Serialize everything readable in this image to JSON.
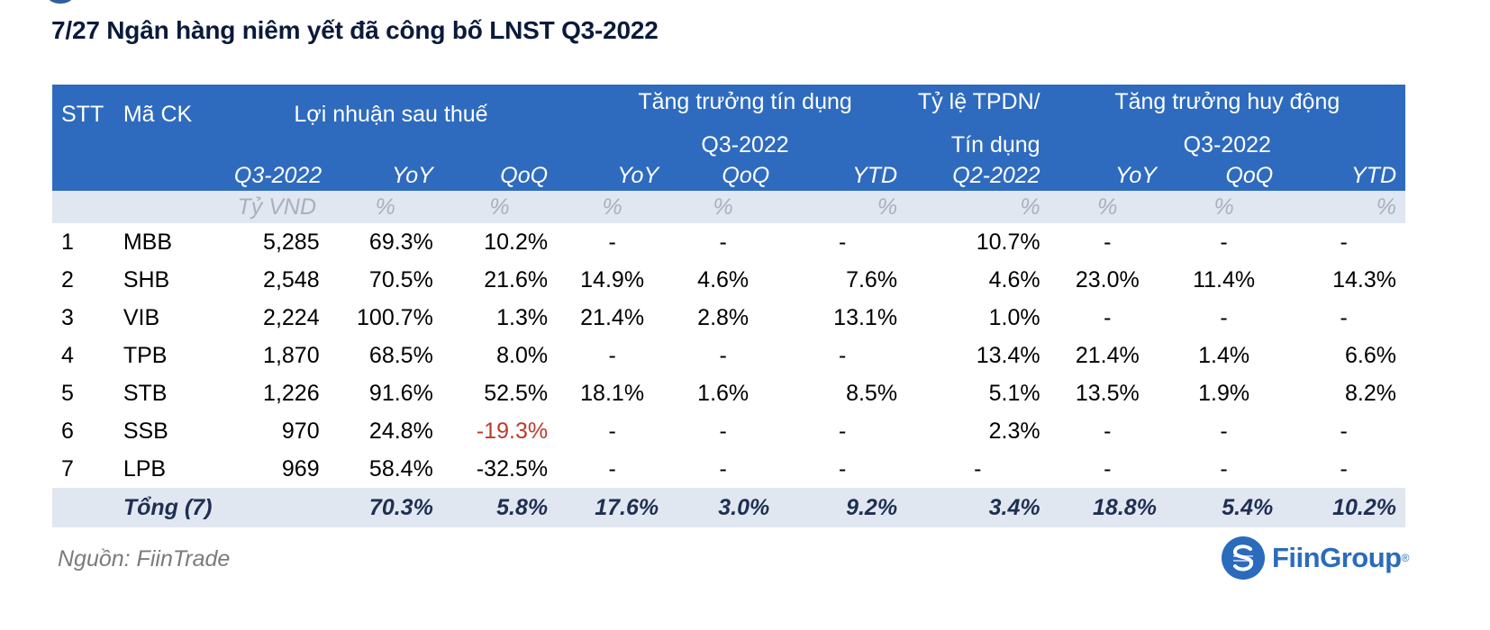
{
  "title": "7/27 Ngân hàng niêm yết đã công bố LNST Q3-2022",
  "header": {
    "stt": "STT",
    "ma_ck": "Mã CK",
    "profit_group": "Lợi nhuận sau thuế",
    "credit_group_line1": "Tăng trưởng tín dụng",
    "credit_group_line2": "Q3-2022",
    "tpdn_group_line1": "Tỷ lệ TPDN/",
    "tpdn_group_line2": "Tín dụng",
    "deposit_group_line1": "Tăng trưởng huy động",
    "deposit_group_line2": "Q3-2022",
    "sub": [
      "Q3-2022",
      "YoY",
      "QoQ",
      "YoY",
      "QoQ",
      "YTD",
      "Q2-2022",
      "YoY",
      "QoQ",
      "YTD"
    ],
    "units": [
      "Tỷ VND",
      "%",
      "%",
      "%",
      "%",
      "%",
      "%",
      "%",
      "%",
      "%"
    ]
  },
  "rows": [
    {
      "stt": "1",
      "code": "MBB",
      "values": [
        "5,285",
        "69.3%",
        "10.2%",
        "-",
        "-",
        "-",
        "10.7%",
        "-",
        "-",
        "-"
      ]
    },
    {
      "stt": "2",
      "code": "SHB",
      "values": [
        "2,548",
        "70.5%",
        "21.6%",
        "14.9%",
        "4.6%",
        "7.6%",
        "4.6%",
        "23.0%",
        "11.4%",
        "14.3%"
      ]
    },
    {
      "stt": "3",
      "code": "VIB",
      "values": [
        "2,224",
        "100.7%",
        "1.3%",
        "21.4%",
        "2.8%",
        "13.1%",
        "1.0%",
        "-",
        "-",
        "-"
      ]
    },
    {
      "stt": "4",
      "code": "TPB",
      "values": [
        "1,870",
        "68.5%",
        "8.0%",
        "-",
        "-",
        "-",
        "13.4%",
        "21.4%",
        "1.4%",
        "6.6%"
      ]
    },
    {
      "stt": "5",
      "code": "STB",
      "values": [
        "1,226",
        "91.6%",
        "52.5%",
        "18.1%",
        "1.6%",
        "8.5%",
        "5.1%",
        "13.5%",
        "1.9%",
        "8.2%"
      ]
    },
    {
      "stt": "6",
      "code": "SSB",
      "values": [
        "970",
        "24.8%",
        "-19.3%",
        "-",
        "-",
        "-",
        "2.3%",
        "-",
        "-",
        "-"
      ]
    },
    {
      "stt": "7",
      "code": "LPB",
      "values": [
        "969",
        "58.4%",
        "-32.5%",
        "-",
        "-",
        "-",
        "-",
        "-",
        "-",
        "-"
      ]
    }
  ],
  "total": {
    "label": "Tổng (7)",
    "values": [
      "",
      "70.3%",
      "5.8%",
      "17.6%",
      "3.0%",
      "9.2%",
      "3.4%",
      "18.8%",
      "5.4%",
      "10.2%"
    ]
  },
  "colors": {
    "header_bg": "#2e6bbf",
    "band_bg": "#e1e7f1",
    "negative_highlight": "#c0392b"
  },
  "source": "Nguồn: FiinTrade",
  "brand": {
    "name": "FiinGroup",
    "mark": "®"
  }
}
